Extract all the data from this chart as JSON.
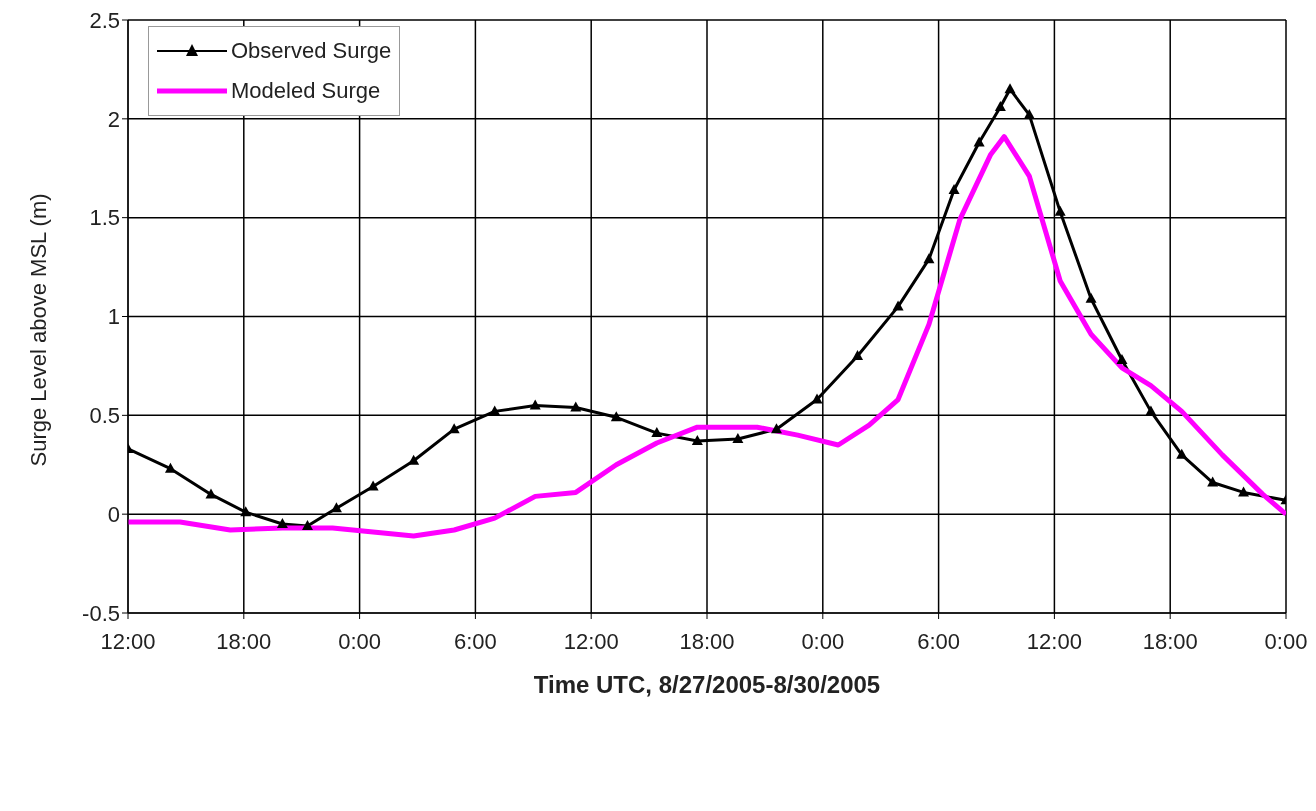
{
  "chart_data": {
    "type": "line",
    "xlabel": "Time UTC, 8/27/2005-8/30/2005",
    "ylabel": "Surge Level above MSL (m)",
    "xlim": [
      "2005-08-27T12:00",
      "2005-08-30T00:00"
    ],
    "xticks": [
      {
        "value": "2005-08-27T12:00",
        "label": "12:00"
      },
      {
        "value": "2005-08-27T18:00",
        "label": "18:00"
      },
      {
        "value": "2005-08-28T00:00",
        "label": "0:00"
      },
      {
        "value": "2005-08-28T06:00",
        "label": "6:00"
      },
      {
        "value": "2005-08-28T12:00",
        "label": "12:00"
      },
      {
        "value": "2005-08-28T18:00",
        "label": "18:00"
      },
      {
        "value": "2005-08-29T00:00",
        "label": "0:00"
      },
      {
        "value": "2005-08-29T06:00",
        "label": "6:00"
      },
      {
        "value": "2005-08-29T12:00",
        "label": "12:00"
      },
      {
        "value": "2005-08-29T18:00",
        "label": "18:00"
      },
      {
        "value": "2005-08-30T00:00",
        "label": "0:00"
      }
    ],
    "ylim": [
      -0.5,
      2.5
    ],
    "yticks": [
      -0.5,
      0,
      0.5,
      1,
      1.5,
      2,
      2.5
    ],
    "grid": true,
    "legend": "top left",
    "series": [
      {
        "name": "Observed Surge",
        "color": "#000000",
        "marker": "triangle",
        "x": [
          "2005-08-27T12:00",
          "2005-08-27T14:12",
          "2005-08-27T16:18",
          "2005-08-27T18:06",
          "2005-08-27T20:00",
          "2005-08-27T21:18",
          "2005-08-27T22:48",
          "2005-08-28T00:42",
          "2005-08-28T02:48",
          "2005-08-28T04:54",
          "2005-08-28T07:00",
          "2005-08-28T09:06",
          "2005-08-28T11:12",
          "2005-08-28T13:18",
          "2005-08-28T15:24",
          "2005-08-28T17:30",
          "2005-08-28T19:36",
          "2005-08-28T21:36",
          "2005-08-28T23:42",
          "2005-08-29T01:48",
          "2005-08-29T03:54",
          "2005-08-29T05:30",
          "2005-08-29T06:48",
          "2005-08-29T08:06",
          "2005-08-29T09:12",
          "2005-08-29T09:42",
          "2005-08-29T10:42",
          "2005-08-29T12:18",
          "2005-08-29T13:54",
          "2005-08-29T15:30",
          "2005-08-29T17:00",
          "2005-08-29T18:36",
          "2005-08-29T20:12",
          "2005-08-29T21:48",
          "2005-08-30T00:00"
        ],
        "values": [
          0.33,
          0.23,
          0.1,
          0.01,
          -0.05,
          -0.06,
          0.03,
          0.14,
          0.27,
          0.43,
          0.52,
          0.55,
          0.54,
          0.49,
          0.41,
          0.37,
          0.38,
          0.43,
          0.58,
          0.8,
          1.05,
          1.29,
          1.64,
          1.88,
          2.06,
          2.15,
          2.02,
          1.53,
          1.09,
          0.78,
          0.52,
          0.3,
          0.16,
          0.11,
          0.07
        ]
      },
      {
        "name": "Modeled Surge",
        "color": "#ff00ff",
        "marker": "none",
        "x": [
          "2005-08-27T12:00",
          "2005-08-27T14:42",
          "2005-08-27T17:18",
          "2005-08-27T20:00",
          "2005-08-27T22:36",
          "2005-08-28T00:42",
          "2005-08-28T02:48",
          "2005-08-28T04:54",
          "2005-08-28T07:00",
          "2005-08-28T09:06",
          "2005-08-28T11:12",
          "2005-08-28T13:18",
          "2005-08-28T15:24",
          "2005-08-28T17:30",
          "2005-08-28T20:36",
          "2005-08-28T22:42",
          "2005-08-29T00:48",
          "2005-08-29T02:24",
          "2005-08-29T03:54",
          "2005-08-29T05:30",
          "2005-08-29T07:06",
          "2005-08-29T08:42",
          "2005-08-29T09:24",
          "2005-08-29T10:42",
          "2005-08-29T12:18",
          "2005-08-29T13:54",
          "2005-08-29T15:30",
          "2005-08-29T17:00",
          "2005-08-29T18:36",
          "2005-08-29T20:42",
          "2005-08-29T22:48",
          "2005-08-30T00:00"
        ],
        "values": [
          -0.04,
          -0.04,
          -0.08,
          -0.07,
          -0.07,
          -0.09,
          -0.11,
          -0.08,
          -0.02,
          0.09,
          0.11,
          0.25,
          0.36,
          0.44,
          0.44,
          0.4,
          0.35,
          0.45,
          0.58,
          0.96,
          1.49,
          1.82,
          1.91,
          1.71,
          1.18,
          0.91,
          0.74,
          0.65,
          0.52,
          0.3,
          0.1,
          0
        ]
      }
    ]
  }
}
